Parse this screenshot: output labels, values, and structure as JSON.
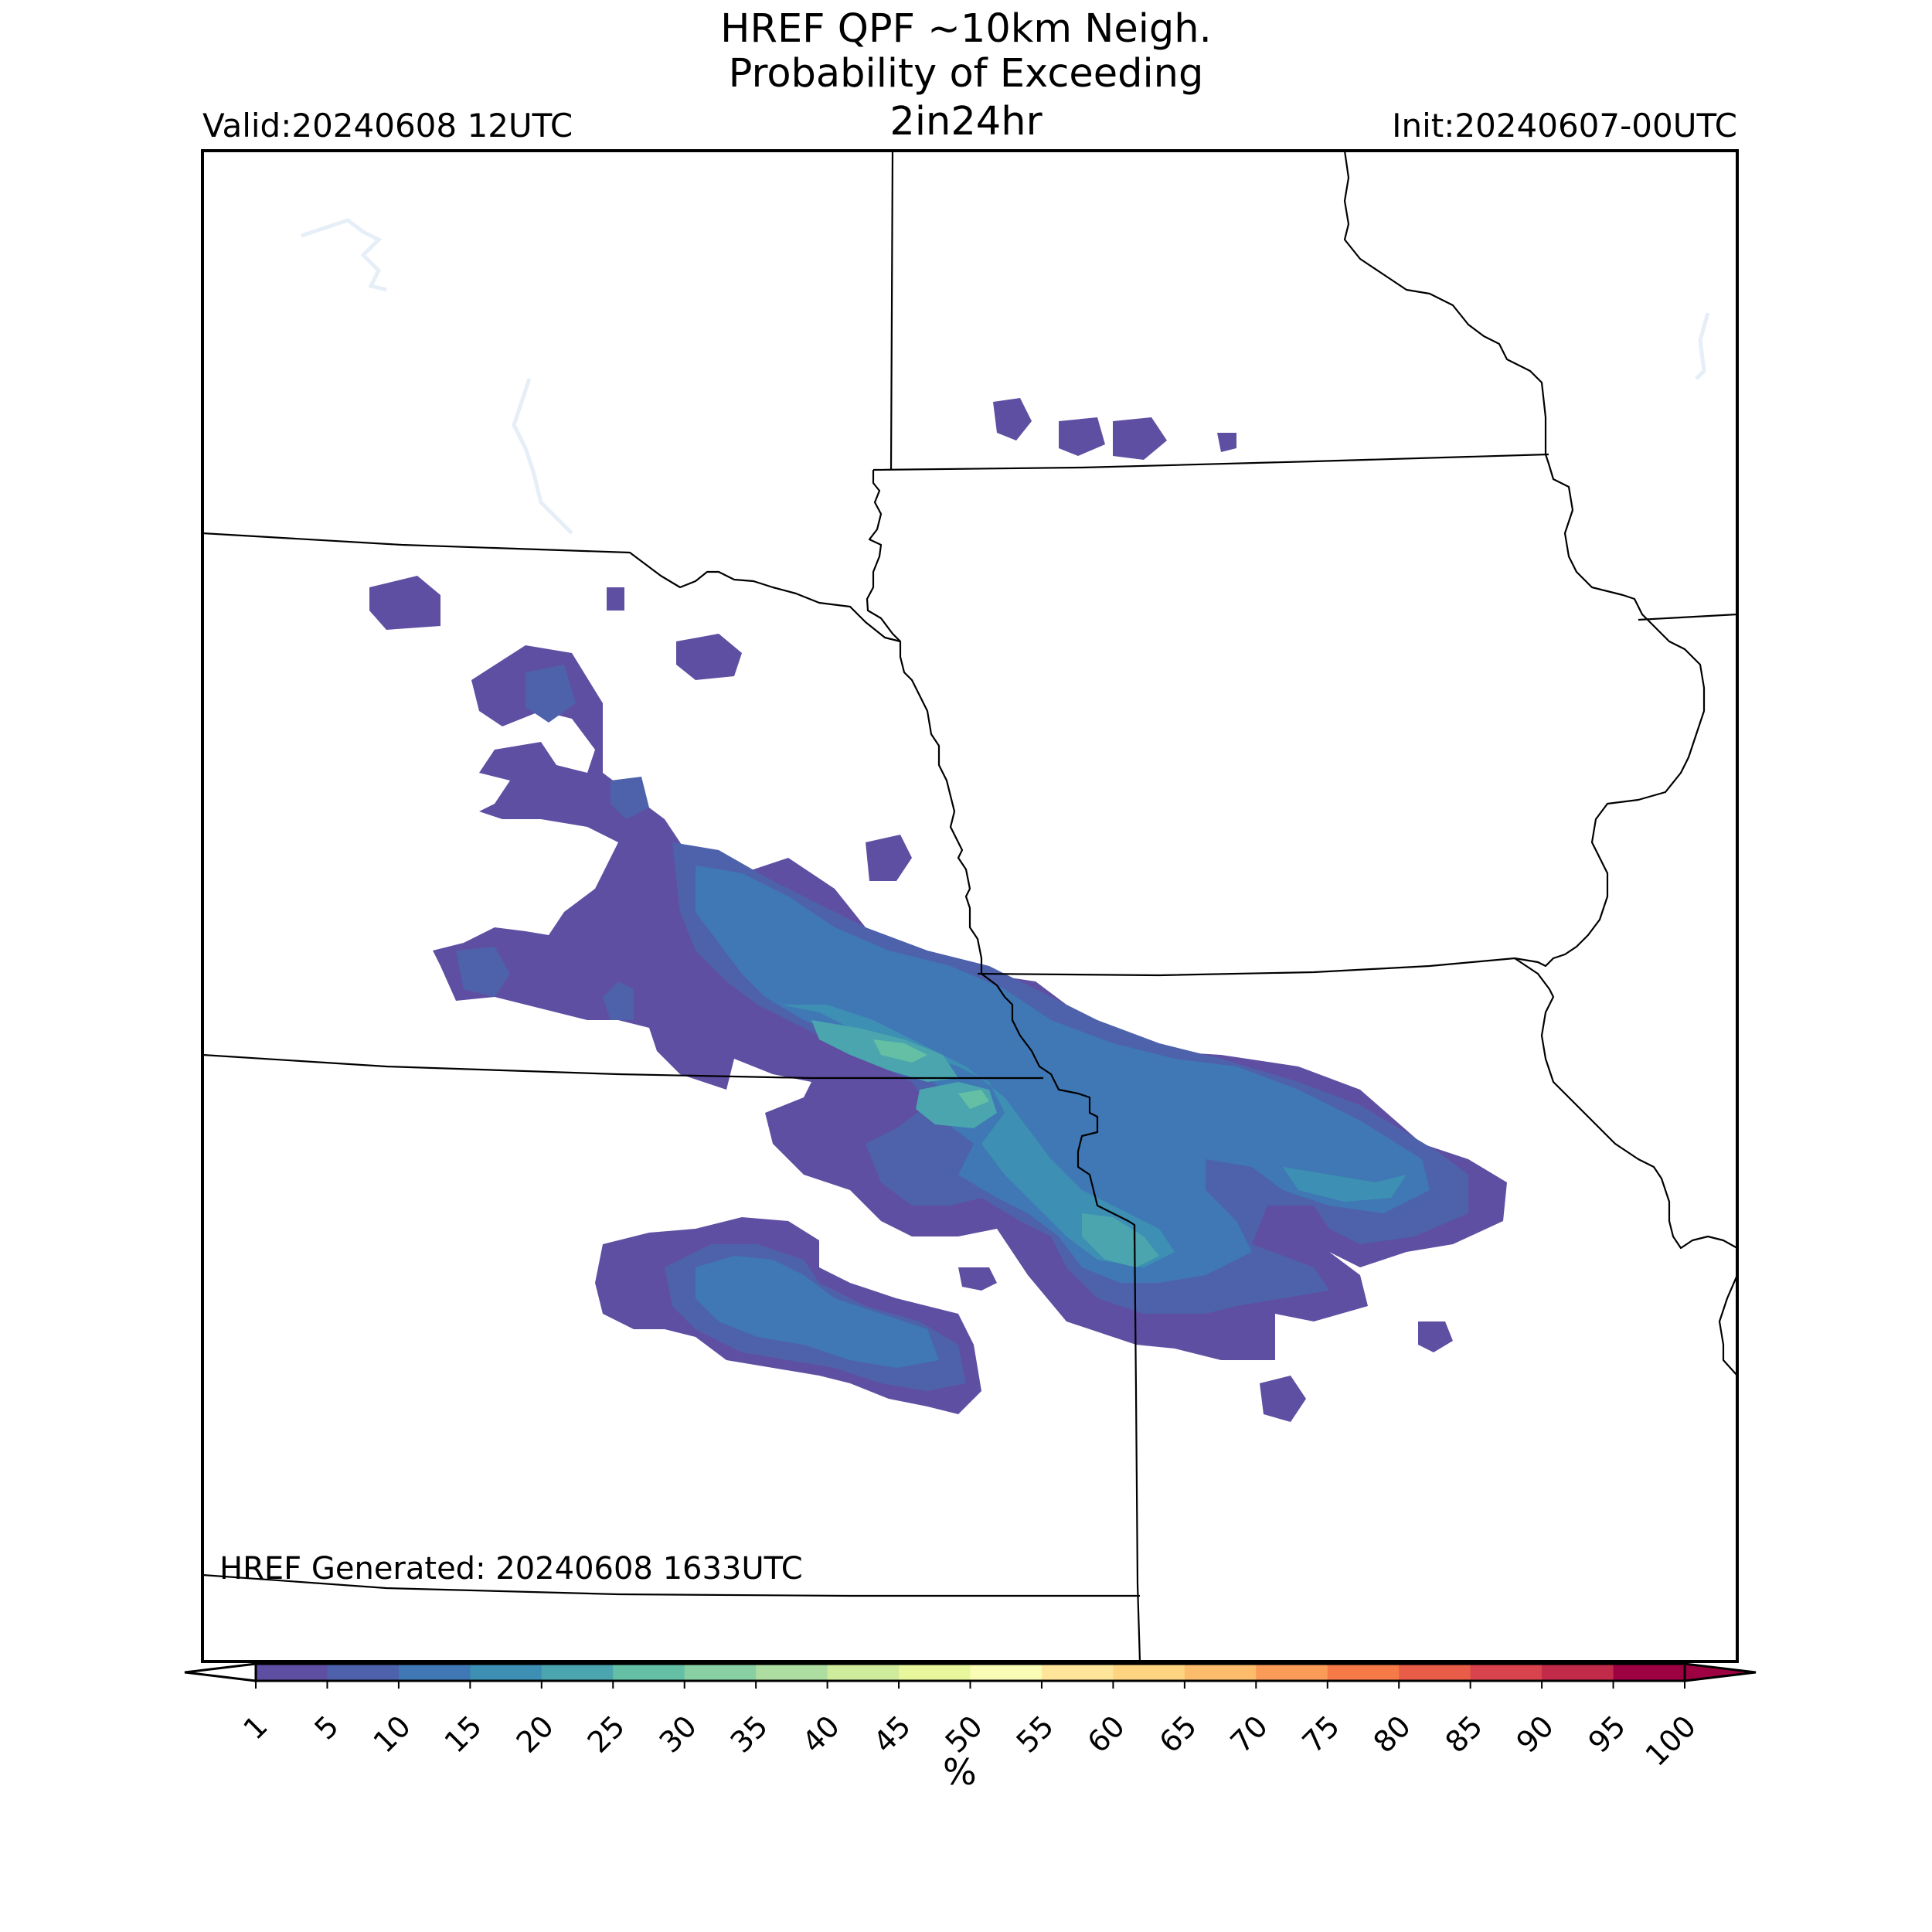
{
  "title": {
    "line1": "HREF QPF ~10km Neigh.",
    "line2": "Probability of Exceeding",
    "line3": "2in24hr"
  },
  "valid_label": "Valid:20240608 12UTC",
  "init_label": "Init:20240607-00UTC",
  "generated_label": "HREF Generated: 20240608 1633UTC",
  "colorbar": {
    "unit_label": "%",
    "ticks": [
      "1",
      "5",
      "10",
      "15",
      "20",
      "25",
      "30",
      "35",
      "40",
      "45",
      "50",
      "55",
      "60",
      "65",
      "70",
      "75",
      "80",
      "85",
      "90",
      "95",
      "100"
    ],
    "colors": [
      "#5e4fa2",
      "#4e62ac",
      "#3f78b4",
      "#3e8fb4",
      "#4aa5ae",
      "#64bfa5",
      "#88cfa4",
      "#aedda1",
      "#cfec9d",
      "#e8f69c",
      "#f8fcb4",
      "#fee59a",
      "#fed481",
      "#fdbc6b",
      "#fa9b58",
      "#f57a47",
      "#e95c47",
      "#d8434d",
      "#c22a4a",
      "#9e0142"
    ],
    "under_color": "#ffffff",
    "over_color": "#9e0142"
  }
}
